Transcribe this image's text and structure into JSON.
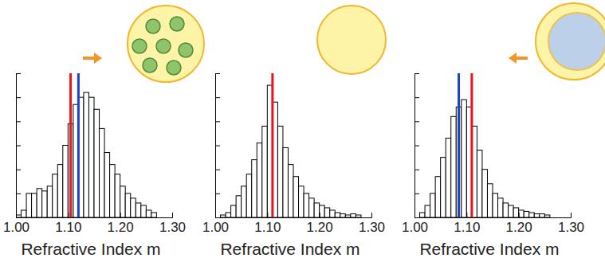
{
  "chart_data": [
    {
      "type": "histogram",
      "x_label": "Refractive Index m",
      "color": "#ffffff",
      "bins": [
        1.0,
        1.01,
        1.02,
        1.03,
        1.04,
        1.05,
        1.06,
        1.07,
        1.08,
        1.09,
        1.1,
        1.11,
        1.12,
        1.13,
        1.14,
        1.15,
        1.16,
        1.17,
        1.18,
        1.19,
        1.2,
        1.21,
        1.22,
        1.23,
        1.24,
        1.25,
        1.26,
        1.27,
        1.28,
        1.29,
        1.3
      ],
      "counts": [
        0.1,
        0.3,
        1.0,
        1.0,
        1.2,
        1.1,
        1.3,
        1.8,
        2.2,
        3.0,
        3.9,
        4.7,
        5.0,
        5.2,
        5.0,
        4.5,
        3.7,
        2.7,
        2.2,
        1.8,
        1.3,
        1.0,
        0.8,
        0.6,
        0.5,
        0.3,
        0.2,
        0,
        0,
        0
      ],
      "reference_lines": [
        {
          "value": 1.105,
          "color": "#e8141e"
        },
        {
          "value": 1.12,
          "color": "#2040d0"
        }
      ],
      "xlim": [
        1.0,
        1.3
      ],
      "xticks": [
        {
          "value": 1.0,
          "label": "1.00"
        },
        {
          "value": 1.1,
          "label": "1.10"
        },
        {
          "value": 1.2,
          "label": "1.20"
        },
        {
          "value": 1.3,
          "label": "1.30"
        }
      ],
      "ylim": [
        0,
        6
      ],
      "yticks": [
        0,
        1,
        2,
        3,
        4,
        5,
        6
      ],
      "tick_labels": "x"
    },
    {
      "type": "histogram",
      "x_label": "Refractive Index m",
      "color": "#ffffff",
      "bins": [
        1.0,
        1.01,
        1.02,
        1.03,
        1.04,
        1.05,
        1.06,
        1.07,
        1.08,
        1.09,
        1.1,
        1.11,
        1.12,
        1.13,
        1.14,
        1.15,
        1.16,
        1.17,
        1.18,
        1.19,
        1.2,
        1.21,
        1.22,
        1.23,
        1.24,
        1.25,
        1.26,
        1.27,
        1.28,
        1.29,
        1.3
      ],
      "counts": [
        0,
        0.1,
        0.2,
        0.5,
        0.9,
        1.3,
        1.8,
        2.4,
        3.1,
        3.8,
        5.5,
        4.8,
        3.8,
        2.9,
        2.2,
        1.7,
        1.3,
        1.0,
        0.8,
        0.6,
        0.5,
        0.4,
        0.3,
        0.2,
        0.15,
        0.1,
        0.15,
        0.1,
        0,
        0
      ],
      "reference_lines": [
        {
          "value": 1.11,
          "color": "#e8141e"
        }
      ],
      "xlim": [
        1.0,
        1.3
      ],
      "xticks": [
        {
          "value": 1.0,
          "label": "1.00"
        },
        {
          "value": 1.1,
          "label": "1.10"
        },
        {
          "value": 1.2,
          "label": "1.20"
        },
        {
          "value": 1.3,
          "label": "1.30"
        }
      ],
      "ylim": [
        0,
        6
      ],
      "yticks": [
        0,
        1,
        2,
        3,
        4,
        5,
        6
      ],
      "tick_labels": "x"
    },
    {
      "type": "histogram",
      "x_label": "Refractive Index m",
      "color": "#ffffff",
      "bins": [
        1.0,
        1.01,
        1.02,
        1.03,
        1.04,
        1.05,
        1.06,
        1.07,
        1.08,
        1.09,
        1.1,
        1.11,
        1.12,
        1.13,
        1.14,
        1.15,
        1.16,
        1.17,
        1.18,
        1.19,
        1.2,
        1.21,
        1.22,
        1.23,
        1.24,
        1.25,
        1.26,
        1.27,
        1.28,
        1.29,
        1.3
      ],
      "counts": [
        0,
        0.2,
        0.5,
        1.0,
        1.7,
        2.5,
        3.3,
        4.2,
        4.6,
        4.9,
        4.6,
        3.8,
        2.8,
        2.0,
        1.4,
        1.0,
        0.8,
        0.6,
        0.5,
        0.4,
        0.3,
        0.25,
        0.2,
        0.15,
        0.15,
        0.1,
        0,
        0,
        0,
        0
      ],
      "reference_lines": [
        {
          "value": 1.085,
          "color": "#2040d0"
        },
        {
          "value": 1.11,
          "color": "#e8141e"
        }
      ],
      "xlim": [
        1.0,
        1.3
      ],
      "xticks": [
        {
          "value": 1.0,
          "label": "1.00"
        },
        {
          "value": 1.1,
          "label": "1.10"
        },
        {
          "value": 1.2,
          "label": "1.20"
        },
        {
          "value": 1.3,
          "label": "1.30"
        }
      ],
      "ylim": [
        0,
        6
      ],
      "yticks": [
        0,
        1,
        2,
        3,
        4,
        5,
        6
      ],
      "tick_labels": "x"
    }
  ]
}
